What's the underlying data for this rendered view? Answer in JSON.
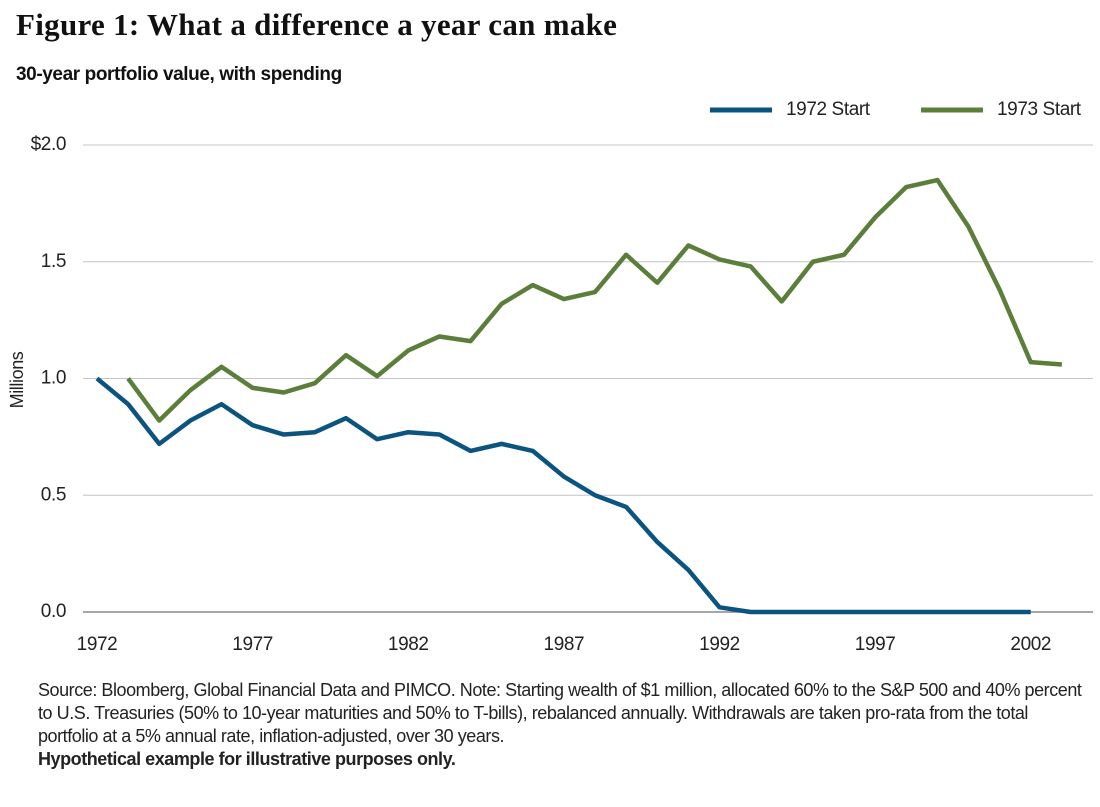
{
  "chart_data": {
    "type": "line",
    "title": "Figure 1: What a difference a year can make",
    "subtitle": "30-year portfolio value, with spending",
    "y_label": "Millions",
    "xlim": [
      1971.55,
      2004.0
    ],
    "xticks": [
      1972,
      1977,
      1982,
      1987,
      1992,
      1997,
      2002
    ],
    "ylim": [
      0,
      2
    ],
    "yticks": [
      {
        "value": 0,
        "label": "0.0"
      },
      0.5,
      {
        "value": 1,
        "label": "1.0"
      },
      1.5,
      {
        "value": 2,
        "label": "$2.0"
      }
    ],
    "grid": true,
    "legend": "top-right",
    "series": [
      {
        "name": "1972 Start",
        "color": "#0b5480",
        "x": [
          1972,
          1973,
          1974,
          1975,
          1976,
          1977,
          1978,
          1979,
          1980,
          1981,
          1982,
          1983,
          1984,
          1985,
          1986,
          1987,
          1988,
          1989,
          1990,
          1991,
          1992,
          1993,
          1994,
          1995,
          1996,
          1997,
          1998,
          1999,
          2000,
          2001,
          2002
        ],
        "values": [
          1.0,
          0.89,
          0.72,
          0.82,
          0.89,
          0.8,
          0.76,
          0.77,
          0.83,
          0.74,
          0.77,
          0.76,
          0.69,
          0.72,
          0.69,
          0.58,
          0.5,
          0.45,
          0.3,
          0.18,
          0.02,
          0,
          0,
          0,
          0,
          0,
          0,
          0,
          0,
          0,
          0
        ]
      },
      {
        "name": "1973 Start",
        "color": "#5b7f3a",
        "x": [
          1973,
          1974,
          1975,
          1976,
          1977,
          1978,
          1979,
          1980,
          1981,
          1982,
          1983,
          1984,
          1985,
          1986,
          1987,
          1988,
          1989,
          1990,
          1991,
          1992,
          1993,
          1994,
          1995,
          1996,
          1997,
          1998,
          1999,
          2000,
          2001,
          2002,
          2003
        ],
        "values": [
          1.0,
          0.82,
          0.95,
          1.05,
          0.96,
          0.94,
          0.98,
          1.1,
          1.01,
          1.12,
          1.18,
          1.16,
          1.32,
          1.4,
          1.34,
          1.37,
          1.53,
          1.41,
          1.57,
          1.51,
          1.48,
          1.33,
          1.5,
          1.53,
          1.69,
          1.82,
          1.85,
          1.65,
          1.38,
          1.07,
          1.06
        ]
      }
    ],
    "notes": {
      "source": "Source: Bloomberg, Global Financial Data and PIMCO. Note: Starting wealth of $1 million, allocated 60% to the S&P 500 and 40% percent to U.S. Treasuries (50% to 10-year maturities and 50% to T-bills), rebalanced annually. Withdrawals are taken pro-rata from the total portfolio at a 5% annual rate, inflation-adjusted, over 30 years.",
      "disclaimer": "Hypothetical example for illustrative purposes only."
    }
  }
}
